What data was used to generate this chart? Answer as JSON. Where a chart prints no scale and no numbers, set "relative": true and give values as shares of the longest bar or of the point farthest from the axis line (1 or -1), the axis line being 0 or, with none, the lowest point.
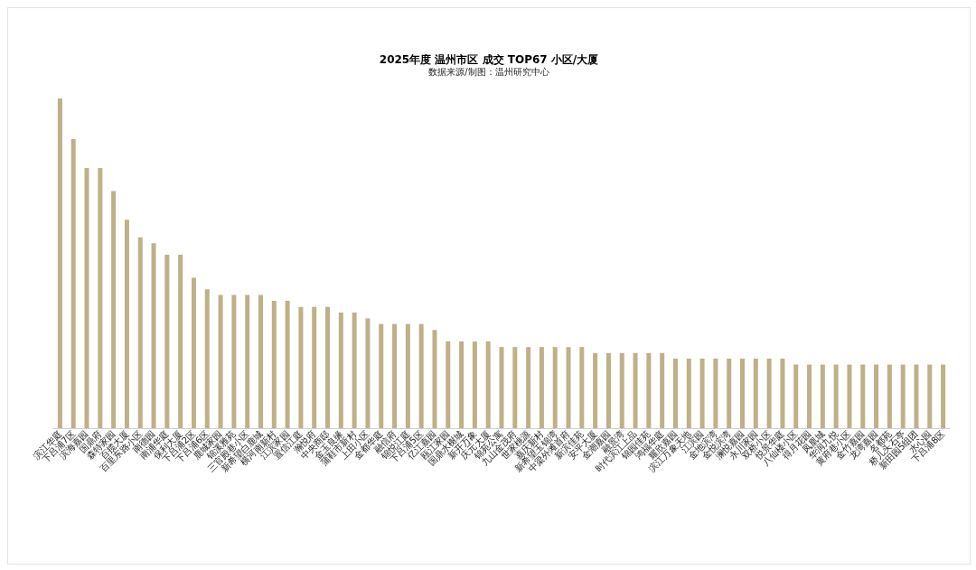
{
  "chart_data": {
    "type": "bar",
    "title": "2025年度 温州市区 成交 TOP67 小区/大厦",
    "subtitle": "数据来源/制图：温州研究中心",
    "relative": true,
    "color": "#bfb088",
    "grid": false,
    "categories": [
      "滨江华庭",
      "下吕浦7区",
      "滨海嘉园",
      "国鼎府",
      "森特家园",
      "百揽大厦",
      "百里东路小区",
      "南德园",
      "南浦华庭",
      "保利大厦",
      "下吕浦2区",
      "下吕浦6区",
      "鹿城家园",
      "锦溪雅苑",
      "三官殿巷小区",
      "新希望白鹿城",
      "横河南新村",
      "江滨家园",
      "置信江庭",
      "瀚悦府",
      "中央商邸",
      "金玉良缘",
      "蒲鞋市新村",
      "上田小区",
      "金都华庭",
      "融信府",
      "锦悦江庭",
      "下吕浦5区",
      "亿江嘉园",
      "瓯江家园",
      "国鼎水榭城",
      "新开万象",
      "庆元大厦",
      "锦苑公寓",
      "九山金茂府",
      "世家桃源",
      "嘉庆新村",
      "新希望玉锦湾",
      "中梁外滩首府",
      "新滨佳苑",
      "安平大厦",
      "金潮嘉园",
      "融景湾",
      "时代滨江上品",
      "锦园佳苑",
      "鸿福华庭",
      "耀欣嘉园",
      "滨江万象天地",
      "江滨园",
      "金地滨湾",
      "金悦滨湾",
      "澜悦嘉园",
      "永川家园",
      "双桥小区",
      "悦景华庭",
      "八仙楼小区",
      "得月花园",
      "凤凰城",
      "华润九悦",
      "黄府巷小区",
      "金竹嘉园",
      "龙湾嘉园",
      "名都苑",
      "桥儿头石亭",
      "新田园5组团",
      "水心园",
      "下吕浦8区"
    ],
    "values": [
      1,
      0.877,
      0.789,
      0.789,
      0.719,
      0.632,
      0.579,
      0.561,
      0.526,
      0.526,
      0.456,
      0.421,
      0.404,
      0.404,
      0.404,
      0.404,
      0.386,
      0.386,
      0.368,
      0.368,
      0.368,
      0.351,
      0.351,
      0.333,
      0.316,
      0.316,
      0.316,
      0.316,
      0.298,
      0.263,
      0.263,
      0.263,
      0.263,
      0.246,
      0.246,
      0.246,
      0.246,
      0.246,
      0.246,
      0.246,
      0.228,
      0.228,
      0.228,
      0.228,
      0.228,
      0.228,
      0.211,
      0.211,
      0.211,
      0.211,
      0.211,
      0.211,
      0.211,
      0.211,
      0.211,
      0.193,
      0.193,
      0.193,
      0.193,
      0.193,
      0.193,
      0.193,
      0.193,
      0.193,
      0.193,
      0.193,
      0.193
    ]
  }
}
